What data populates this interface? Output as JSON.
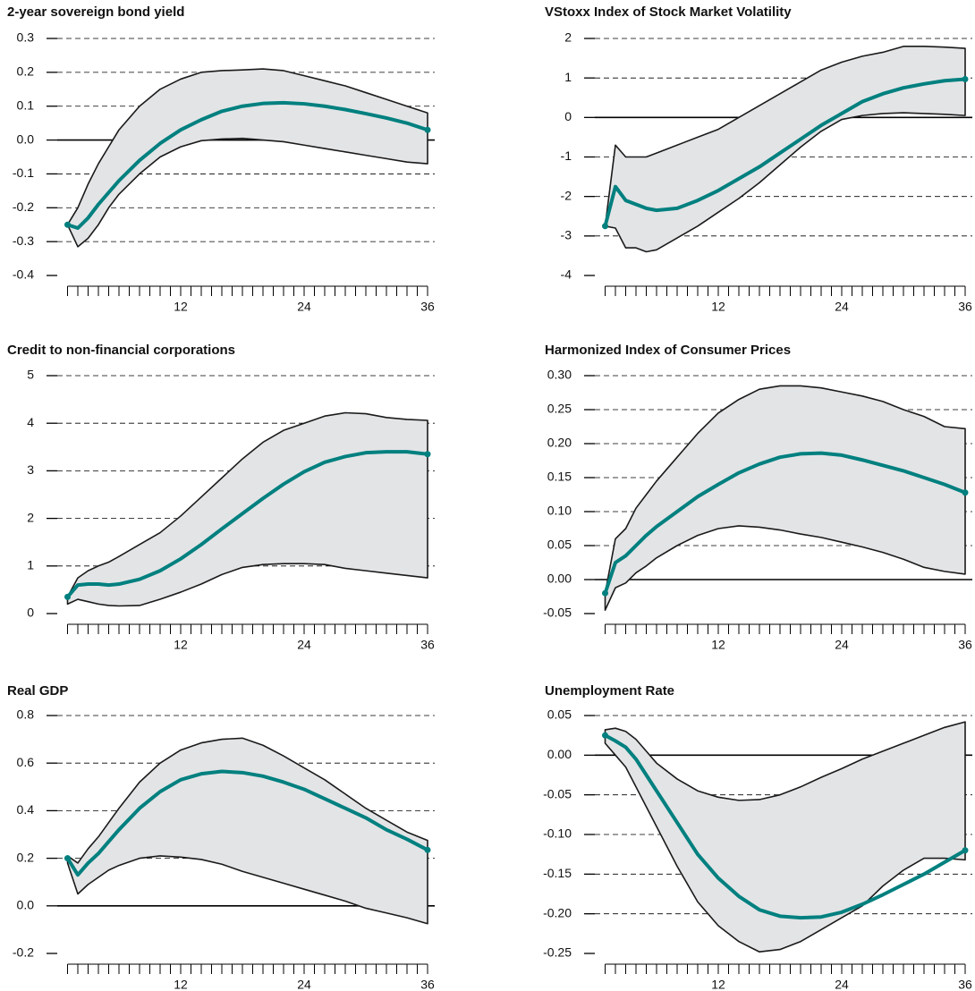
{
  "chart_data": [
    {
      "type": "line",
      "title": "2-year sovereign bond yield",
      "x": [
        1,
        2,
        3,
        4,
        5,
        6,
        8,
        10,
        12,
        14,
        16,
        18,
        20,
        22,
        24,
        26,
        28,
        30,
        32,
        34,
        36
      ],
      "series": [
        {
          "color": "#00807f",
          "values": [
            -0.25,
            -0.26,
            -0.23,
            -0.19,
            -0.155,
            -0.12,
            -0.06,
            -0.01,
            0.03,
            0.06,
            0.085,
            0.1,
            0.108,
            0.11,
            0.107,
            0.1,
            0.09,
            0.078,
            0.065,
            0.05,
            0.03
          ]
        }
      ],
      "band": {
        "color": "#e3e4e6",
        "upper": [
          -0.25,
          -0.2,
          -0.13,
          -0.07,
          -0.02,
          0.03,
          0.1,
          0.15,
          0.18,
          0.2,
          0.205,
          0.207,
          0.21,
          0.205,
          0.19,
          0.175,
          0.16,
          0.14,
          0.12,
          0.1,
          0.08
        ],
        "lower": [
          -0.25,
          -0.315,
          -0.29,
          -0.25,
          -0.2,
          -0.16,
          -0.1,
          -0.05,
          -0.02,
          -0.002,
          0.003,
          0.005,
          0.0,
          -0.005,
          -0.015,
          -0.025,
          -0.035,
          -0.045,
          -0.055,
          -0.065,
          -0.07
        ]
      },
      "xlim": [
        0,
        36
      ],
      "xticks": [
        12,
        24,
        36
      ],
      "ylim": [
        -0.4,
        0.3
      ],
      "yticks": [
        0.3,
        0.2,
        0.1,
        {
          "value": 0,
          "label": "0.0"
        },
        -0.1,
        -0.2,
        -0.3,
        -0.4
      ],
      "grid": true
    },
    {
      "type": "line",
      "title": "VStoxx Index of Stock Market Volatility",
      "x": [
        1,
        2,
        3,
        4,
        5,
        6,
        8,
        10,
        12,
        14,
        16,
        18,
        20,
        22,
        24,
        26,
        28,
        30,
        32,
        34,
        36
      ],
      "series": [
        {
          "color": "#00807f",
          "values": [
            -2.75,
            -1.75,
            -2.1,
            -2.2,
            -2.3,
            -2.35,
            -2.3,
            -2.1,
            -1.85,
            -1.55,
            -1.25,
            -0.9,
            -0.55,
            -0.2,
            0.1,
            0.4,
            0.6,
            0.75,
            0.85,
            0.93,
            0.97
          ]
        }
      ],
      "band": {
        "color": "#e3e4e6",
        "upper": [
          -2.75,
          -0.7,
          -1.0,
          -1.0,
          -1.0,
          -0.9,
          -0.7,
          -0.5,
          -0.3,
          0.0,
          0.3,
          0.6,
          0.9,
          1.2,
          1.4,
          1.55,
          1.65,
          1.8,
          1.8,
          1.78,
          1.75
        ],
        "lower": [
          -2.75,
          -2.8,
          -3.3,
          -3.3,
          -3.4,
          -3.35,
          -3.05,
          -2.75,
          -2.4,
          -2.05,
          -1.65,
          -1.2,
          -0.75,
          -0.35,
          -0.05,
          0.05,
          0.1,
          0.12,
          0.1,
          0.08,
          0.05
        ]
      },
      "xlim": [
        0,
        36
      ],
      "xticks": [
        12,
        24,
        36
      ],
      "ylim": [
        -4,
        2
      ],
      "yticks": [
        2,
        1,
        0,
        -1,
        -2,
        -3,
        -4
      ],
      "grid": true
    },
    {
      "type": "line",
      "title": "Credit to non-financial corporations",
      "x": [
        1,
        2,
        3,
        4,
        5,
        6,
        8,
        10,
        12,
        14,
        16,
        18,
        20,
        22,
        24,
        26,
        28,
        30,
        32,
        34,
        36
      ],
      "series": [
        {
          "color": "#00807f",
          "values": [
            0.35,
            0.6,
            0.62,
            0.62,
            0.6,
            0.62,
            0.72,
            0.9,
            1.15,
            1.45,
            1.78,
            2.1,
            2.42,
            2.72,
            2.98,
            3.18,
            3.3,
            3.38,
            3.4,
            3.4,
            3.35
          ]
        }
      ],
      "band": {
        "color": "#e3e4e6",
        "upper": [
          0.35,
          0.75,
          0.9,
          1.0,
          1.08,
          1.2,
          1.45,
          1.7,
          2.05,
          2.45,
          2.85,
          3.25,
          3.6,
          3.85,
          4.0,
          4.15,
          4.22,
          4.2,
          4.12,
          4.08,
          4.06
        ],
        "lower": [
          0.2,
          0.3,
          0.25,
          0.2,
          0.17,
          0.16,
          0.17,
          0.3,
          0.45,
          0.62,
          0.82,
          0.97,
          1.03,
          1.05,
          1.05,
          1.03,
          0.95,
          0.9,
          0.85,
          0.8,
          0.75
        ]
      },
      "xlim": [
        0,
        36
      ],
      "xticks": [
        12,
        24,
        36
      ],
      "ylim": [
        0,
        5
      ],
      "yticks": [
        5,
        4,
        3,
        2,
        1,
        0
      ],
      "grid": true
    },
    {
      "type": "line",
      "title": "Harmonized Index of Consumer Prices",
      "x": [
        1,
        2,
        3,
        4,
        5,
        6,
        8,
        10,
        12,
        14,
        16,
        18,
        20,
        22,
        24,
        26,
        28,
        30,
        32,
        34,
        36
      ],
      "series": [
        {
          "color": "#00807f",
          "values": [
            -0.02,
            0.025,
            0.035,
            0.05,
            0.065,
            0.078,
            0.1,
            0.122,
            0.14,
            0.157,
            0.17,
            0.18,
            0.185,
            0.186,
            0.183,
            0.176,
            0.168,
            0.16,
            0.15,
            0.14,
            0.128
          ]
        }
      ],
      "band": {
        "color": "#e3e4e6",
        "upper": [
          -0.02,
          0.06,
          0.075,
          0.105,
          0.125,
          0.145,
          0.18,
          0.215,
          0.245,
          0.265,
          0.28,
          0.285,
          0.285,
          0.282,
          0.276,
          0.27,
          0.262,
          0.25,
          0.24,
          0.225,
          0.222
        ],
        "lower": [
          -0.045,
          -0.012,
          -0.005,
          0.01,
          0.02,
          0.032,
          0.05,
          0.065,
          0.075,
          0.079,
          0.077,
          0.073,
          0.067,
          0.062,
          0.055,
          0.048,
          0.04,
          0.03,
          0.018,
          0.012,
          0.008
        ]
      },
      "xlim": [
        0,
        36
      ],
      "xticks": [
        12,
        24,
        36
      ],
      "ylim": [
        -0.05,
        0.3
      ],
      "yticks": [
        {
          "value": 0.3,
          "label": "0.30"
        },
        0.25,
        {
          "value": 0.2,
          "label": "0.20"
        },
        0.15,
        {
          "value": 0.1,
          "label": "0.10"
        },
        0.05,
        {
          "value": 0,
          "label": "0.00"
        },
        -0.05
      ],
      "grid": true
    },
    {
      "type": "line",
      "title": "Real GDP",
      "x": [
        1,
        2,
        3,
        4,
        5,
        6,
        8,
        10,
        12,
        14,
        16,
        18,
        20,
        22,
        24,
        26,
        28,
        30,
        32,
        34,
        36
      ],
      "series": [
        {
          "color": "#00807f",
          "values": [
            0.2,
            0.13,
            0.18,
            0.22,
            0.27,
            0.32,
            0.41,
            0.48,
            0.53,
            0.555,
            0.565,
            0.56,
            0.545,
            0.52,
            0.49,
            0.45,
            0.41,
            0.37,
            0.32,
            0.28,
            0.235
          ]
        }
      ],
      "band": {
        "color": "#e3e4e6",
        "upper": [
          0.21,
          0.18,
          0.24,
          0.29,
          0.35,
          0.41,
          0.52,
          0.6,
          0.655,
          0.685,
          0.7,
          0.705,
          0.675,
          0.63,
          0.58,
          0.53,
          0.47,
          0.41,
          0.36,
          0.31,
          0.275
        ],
        "lower": [
          0.18,
          0.05,
          0.09,
          0.12,
          0.15,
          0.17,
          0.2,
          0.21,
          0.205,
          0.195,
          0.175,
          0.145,
          0.12,
          0.095,
          0.07,
          0.045,
          0.02,
          -0.01,
          -0.03,
          -0.05,
          -0.075
        ]
      },
      "xlim": [
        0,
        36
      ],
      "xticks": [
        12,
        24,
        36
      ],
      "ylim": [
        -0.2,
        0.8
      ],
      "yticks": [
        0.8,
        0.6,
        0.4,
        0.2,
        {
          "value": 0,
          "label": "0.0"
        },
        -0.2
      ],
      "grid": true
    },
    {
      "type": "line",
      "title": "Unemployment Rate",
      "x": [
        1,
        2,
        3,
        4,
        5,
        6,
        8,
        10,
        12,
        14,
        16,
        18,
        20,
        22,
        24,
        26,
        28,
        30,
        32,
        34,
        36
      ],
      "series": [
        {
          "color": "#00807f",
          "values": [
            0.025,
            0.018,
            0.01,
            -0.005,
            -0.025,
            -0.045,
            -0.085,
            -0.125,
            -0.155,
            -0.178,
            -0.195,
            -0.203,
            -0.205,
            -0.204,
            -0.198,
            -0.188,
            -0.176,
            -0.163,
            -0.15,
            -0.135,
            -0.12
          ]
        }
      ],
      "band": {
        "color": "#e3e4e6",
        "upper": [
          0.032,
          0.034,
          0.03,
          0.02,
          0.005,
          -0.01,
          -0.03,
          -0.045,
          -0.053,
          -0.057,
          -0.056,
          -0.05,
          -0.04,
          -0.028,
          -0.017,
          -0.005,
          0.005,
          0.015,
          0.025,
          0.035,
          0.042
        ],
        "lower": [
          0.015,
          0.0,
          -0.015,
          -0.04,
          -0.065,
          -0.09,
          -0.14,
          -0.185,
          -0.215,
          -0.235,
          -0.248,
          -0.245,
          -0.235,
          -0.22,
          -0.205,
          -0.19,
          -0.165,
          -0.145,
          -0.13,
          -0.13,
          -0.132
        ]
      },
      "xlim": [
        0,
        36
      ],
      "xticks": [
        12,
        24,
        36
      ],
      "ylim": [
        -0.25,
        0.05
      ],
      "yticks": [
        0.05,
        {
          "value": 0,
          "label": "0.00"
        },
        -0.05,
        {
          "value": -0.1,
          "label": "-0.10"
        },
        -0.15,
        {
          "value": -0.2,
          "label": "-0.20"
        },
        -0.25
      ],
      "grid": true
    }
  ]
}
